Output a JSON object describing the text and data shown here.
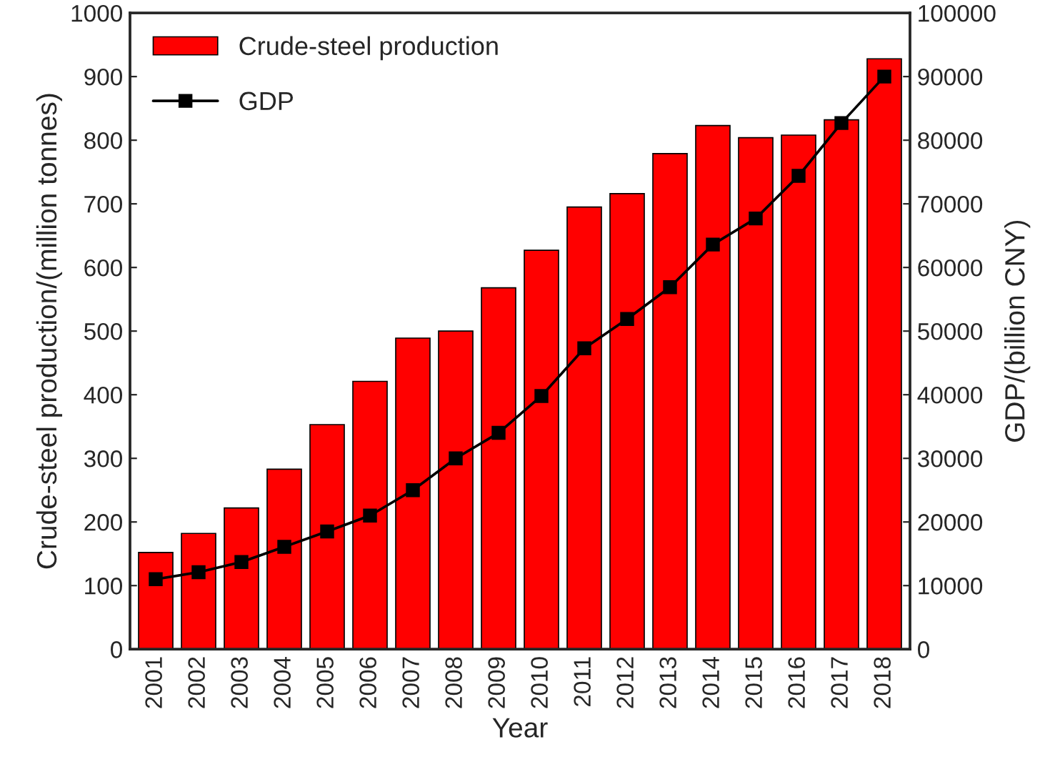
{
  "chart_data": {
    "type": "bar",
    "xlabel": "Year",
    "ylabel": "Crude-steel production/(million tonnes)",
    "y2label": "GDP/(billion CNY)",
    "categories": [
      "2001",
      "2002",
      "2003",
      "2004",
      "2005",
      "2006",
      "2007",
      "2008",
      "2009",
      "2010",
      "2011",
      "2012",
      "2013",
      "2014",
      "2015",
      "2016",
      "2017",
      "2018"
    ],
    "series": [
      {
        "name": "Crude-steel production",
        "color": "#ff0000",
        "values": [
          152,
          182,
          222,
          283,
          353,
          421,
          489,
          500,
          568,
          627,
          695,
          716,
          779,
          823,
          804,
          808,
          832,
          928
        ]
      },
      {
        "name": "GDP",
        "type": "line",
        "axis": "y2",
        "color": "#000000",
        "marker": "square",
        "line_style": "solid",
        "values": [
          11000,
          12100,
          13700,
          16100,
          18500,
          21000,
          25000,
          30000,
          34000,
          39800,
          47300,
          51900,
          56900,
          63600,
          67700,
          74400,
          82700,
          90000
        ]
      }
    ],
    "ylim": [
      0,
      1000
    ],
    "yticks": [
      0,
      100,
      200,
      300,
      400,
      500,
      600,
      700,
      800,
      900,
      1000
    ],
    "y2lim": [
      0,
      100000
    ],
    "y2ticks": [
      0,
      10000,
      20000,
      30000,
      40000,
      50000,
      60000,
      70000,
      80000,
      90000,
      100000
    ],
    "legend": "top left",
    "grid": false
  }
}
